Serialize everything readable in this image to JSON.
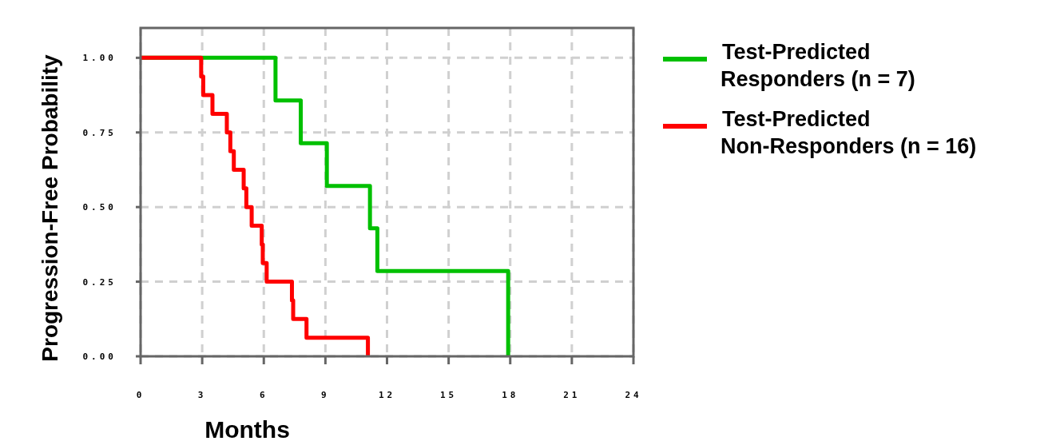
{
  "chart_data": {
    "type": "step",
    "xlabel": "Months",
    "ylabel": "Progression-Free Probability",
    "xlim": [
      0,
      24
    ],
    "ylim": [
      0,
      1.1
    ],
    "xticks": [
      0,
      3,
      6,
      9,
      12,
      15,
      18,
      21,
      24
    ],
    "yticks": [
      {
        "value": 0,
        "label": "0.00"
      },
      {
        "value": 0.25,
        "label": "0.25"
      },
      {
        "value": 0.5,
        "label": "0.50"
      },
      {
        "value": 0.75,
        "label": "0.75"
      },
      {
        "value": 1,
        "label": "1.00"
      }
    ],
    "grid": true,
    "legend": "top right",
    "marker": "none",
    "line_style": "solid",
    "series": [
      {
        "name": "Test-Predicted Responders (n = 7)",
        "color": "#00c000",
        "x": [
          0,
          6.57,
          7.8,
          9.07,
          11.17,
          11.53,
          17.9
        ],
        "values": [
          1,
          0.857,
          0.714,
          0.571,
          0.429,
          0.286,
          0
        ]
      },
      {
        "name": "Test-Predicted Non-Responders (n = 16)",
        "color": "#ff0000",
        "x": [
          0,
          2.95,
          3.05,
          3.5,
          4.2,
          4.37,
          4.54,
          5.02,
          5.15,
          5.41,
          5.9,
          5.95,
          6.14,
          7.37,
          7.43,
          8.08,
          11.07
        ],
        "values": [
          1,
          0.9375,
          0.875,
          0.8125,
          0.75,
          0.6875,
          0.625,
          0.5625,
          0.5,
          0.4375,
          0.375,
          0.3125,
          0.25,
          0.1875,
          0.125,
          0.0625,
          0
        ]
      }
    ]
  }
}
